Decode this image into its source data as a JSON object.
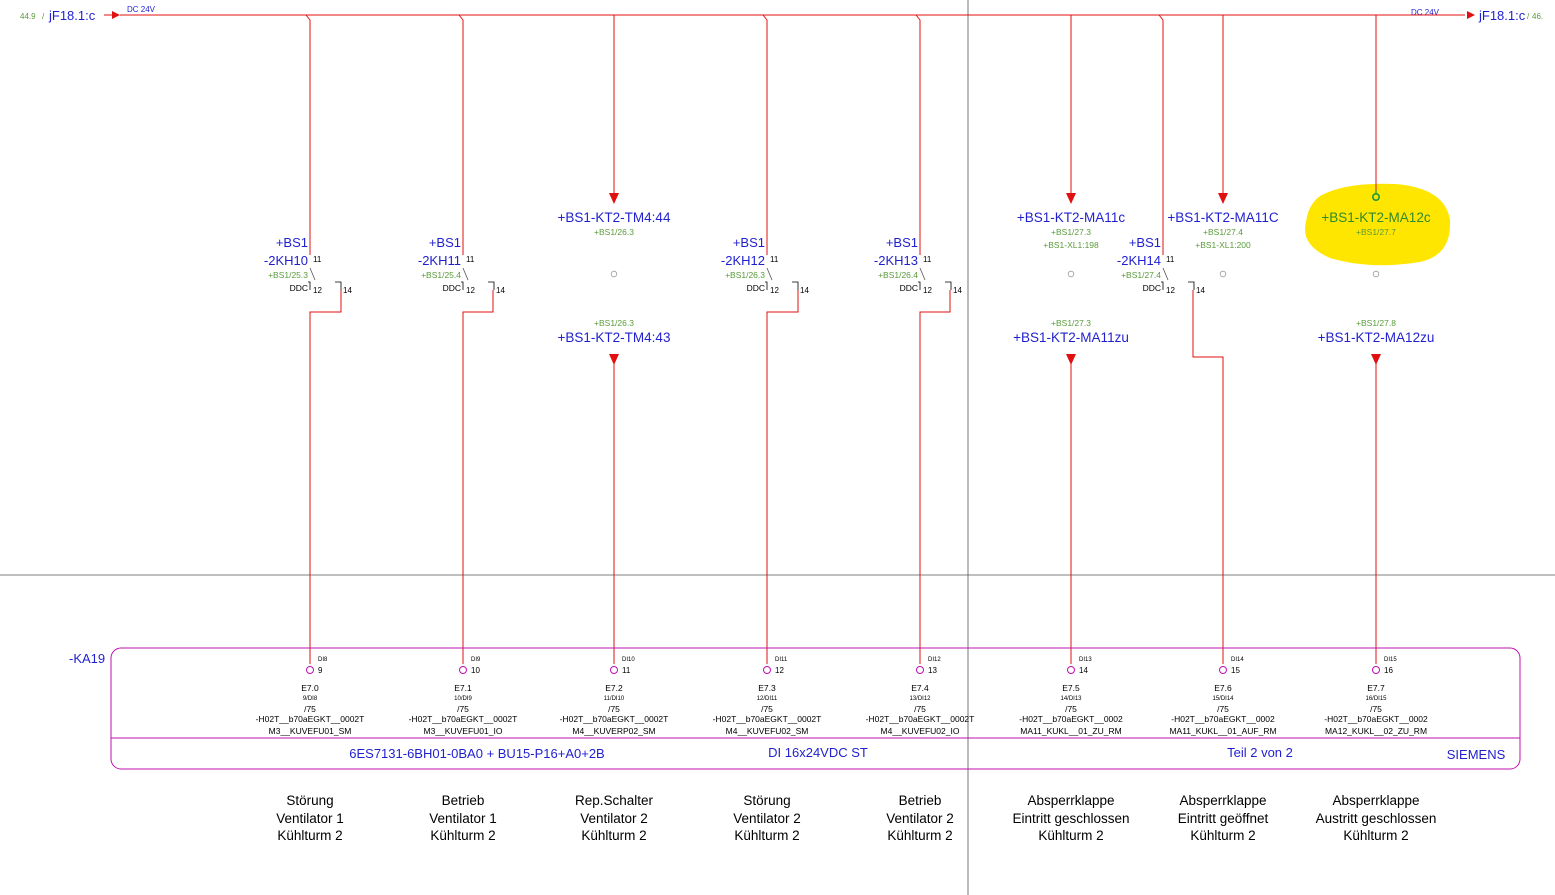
{
  "header": {
    "left_ref_num": "44.9",
    "left_ref": "jF18.1:c",
    "left_voltage": "DC 24V",
    "right_voltage": "DC 24V",
    "right_ref": "jF18.1:c",
    "right_ref_num": "46."
  },
  "contacts": [
    {
      "line1": "+BS1",
      "line2": "-2KH10",
      "ref": "+BS1/25.3",
      "label": "DDC",
      "pin_a": "11",
      "pin_b": "12",
      "pin_c": "14"
    },
    {
      "line1": "+BS1",
      "line2": "-2KH11",
      "ref": "+BS1/25.4",
      "label": "DDC",
      "pin_a": "11",
      "pin_b": "12",
      "pin_c": "14"
    },
    {
      "line1": "+BS1",
      "line2": "-2KH12",
      "ref": "+BS1/26.3",
      "label": "DDC",
      "pin_a": "11",
      "pin_b": "12",
      "pin_c": "14"
    },
    {
      "line1": "+BS1",
      "line2": "-2KH13",
      "ref": "+BS1/26.4",
      "label": "DDC",
      "pin_a": "11",
      "pin_b": "12",
      "pin_c": "14"
    },
    {
      "line1": "+BS1",
      "line2": "-2KH14",
      "ref": "+BS1/27.4",
      "label": "DDC",
      "pin_a": "11",
      "pin_b": "12",
      "pin_c": "14"
    }
  ],
  "terminals": [
    {
      "top": "+BS1-KT2-TM4:44",
      "top_ref": "+BS1/26.3",
      "top_ref2": "",
      "bot_ref": "+BS1/26.3",
      "bottom": "+BS1-KT2-TM4:43"
    },
    {
      "top": "+BS1-KT2-MA11c",
      "top_ref": "+BS1/27.3",
      "top_ref2": "+BS1-XL1:198",
      "bot_ref": "+BS1/27.3",
      "bottom": "+BS1-KT2-MA11zu"
    },
    {
      "top": "+BS1-KT2-MA11C",
      "top_ref": "+BS1/27.4",
      "top_ref2": "+BS1-XL1:200",
      "bot_ref": "",
      "bottom": ""
    },
    {
      "top": "+BS1-KT2-MA12c",
      "top_ref": "+BS1/27.7",
      "top_ref2": "",
      "bot_ref": "+BS1/27.8",
      "bottom": "+BS1-KT2-MA12zu"
    }
  ],
  "module": {
    "tag": "-KA19",
    "order_no": "6ES7131-6BH01-0BA0 + BU15-P16+A0+2B",
    "type": "DI 16x24VDC ST",
    "part": "Teil 2 von 2",
    "brand": "SIEMENS",
    "channels": [
      {
        "di": "DI8",
        "pin": "9",
        "addr": "E7.0",
        "sub": "9/DI8",
        "page": "/75",
        "sym1": "-H02T__b70aEGKT__0002T",
        "sym2": "M3__KUVEFU01_SM"
      },
      {
        "di": "DI9",
        "pin": "10",
        "addr": "E7.1",
        "sub": "10/DI9",
        "page": "/75",
        "sym1": "-H02T__b70aEGKT__0002T",
        "sym2": "M3__KUVEFU01_IO"
      },
      {
        "di": "DI10",
        "pin": "11",
        "addr": "E7.2",
        "sub": "11/DI10",
        "page": "/75",
        "sym1": "-H02T__b70aEGKT__0002T",
        "sym2": "M4__KUVERP02_SM"
      },
      {
        "di": "DI11",
        "pin": "12",
        "addr": "E7.3",
        "sub": "12/DI11",
        "page": "/75",
        "sym1": "-H02T__b70aEGKT__0002T",
        "sym2": "M4__KUVEFU02_SM"
      },
      {
        "di": "DI12",
        "pin": "13",
        "addr": "E7.4",
        "sub": "13/DI12",
        "page": "/75",
        "sym1": "-H02T__b70aEGKT__0002T",
        "sym2": "M4__KUVEFU02_IO"
      },
      {
        "di": "DI13",
        "pin": "14",
        "addr": "E7.5",
        "sub": "14/DI13",
        "page": "/75",
        "sym1": "-H02T__b70aEGKT__0002",
        "sym2": "MA11_KUKL__01_ZU_RM"
      },
      {
        "di": "DI14",
        "pin": "15",
        "addr": "E7.6",
        "sub": "15/DI14",
        "page": "/75",
        "sym1": "-H02T__b70aEGKT__0002",
        "sym2": "MA11_KUKL__01_AUF_RM"
      },
      {
        "di": "DI15",
        "pin": "16",
        "addr": "E7.7",
        "sub": "16/DI15",
        "page": "/75",
        "sym1": "-H02T__b70aEGKT__0002",
        "sym2": "MA12_KUKL__02_ZU_RM"
      }
    ]
  },
  "descriptions": [
    {
      "l1": "Störung",
      "l2": "Ventilator 1",
      "l3": "Kühlturm 2"
    },
    {
      "l1": "Betrieb",
      "l2": "Ventilator 1",
      "l3": "Kühlturm 2"
    },
    {
      "l1": "Rep.Schalter",
      "l2": "Ventilator 2",
      "l3": "Kühlturm 2"
    },
    {
      "l1": "Störung",
      "l2": "Ventilator 2",
      "l3": "Kühlturm 2"
    },
    {
      "l1": "Betrieb",
      "l2": "Ventilator 2",
      "l3": "Kühlturm 2"
    },
    {
      "l1": "Absperrklappe",
      "l2": "Eintritt geschlossen",
      "l3": "Kühlturm 2"
    },
    {
      "l1": "Absperrklappe",
      "l2": "Eintritt geöffnet",
      "l3": "Kühlturm 2"
    },
    {
      "l1": "Absperrklappe",
      "l2": "Austritt geschlossen",
      "l3": "Kühlturm 2"
    }
  ],
  "colors": {
    "wire": "#e01010",
    "text_blue": "#1f1fd0",
    "ref_green": "#5a9b3a",
    "module": "#c010b0",
    "highlight": "#ffe600"
  }
}
